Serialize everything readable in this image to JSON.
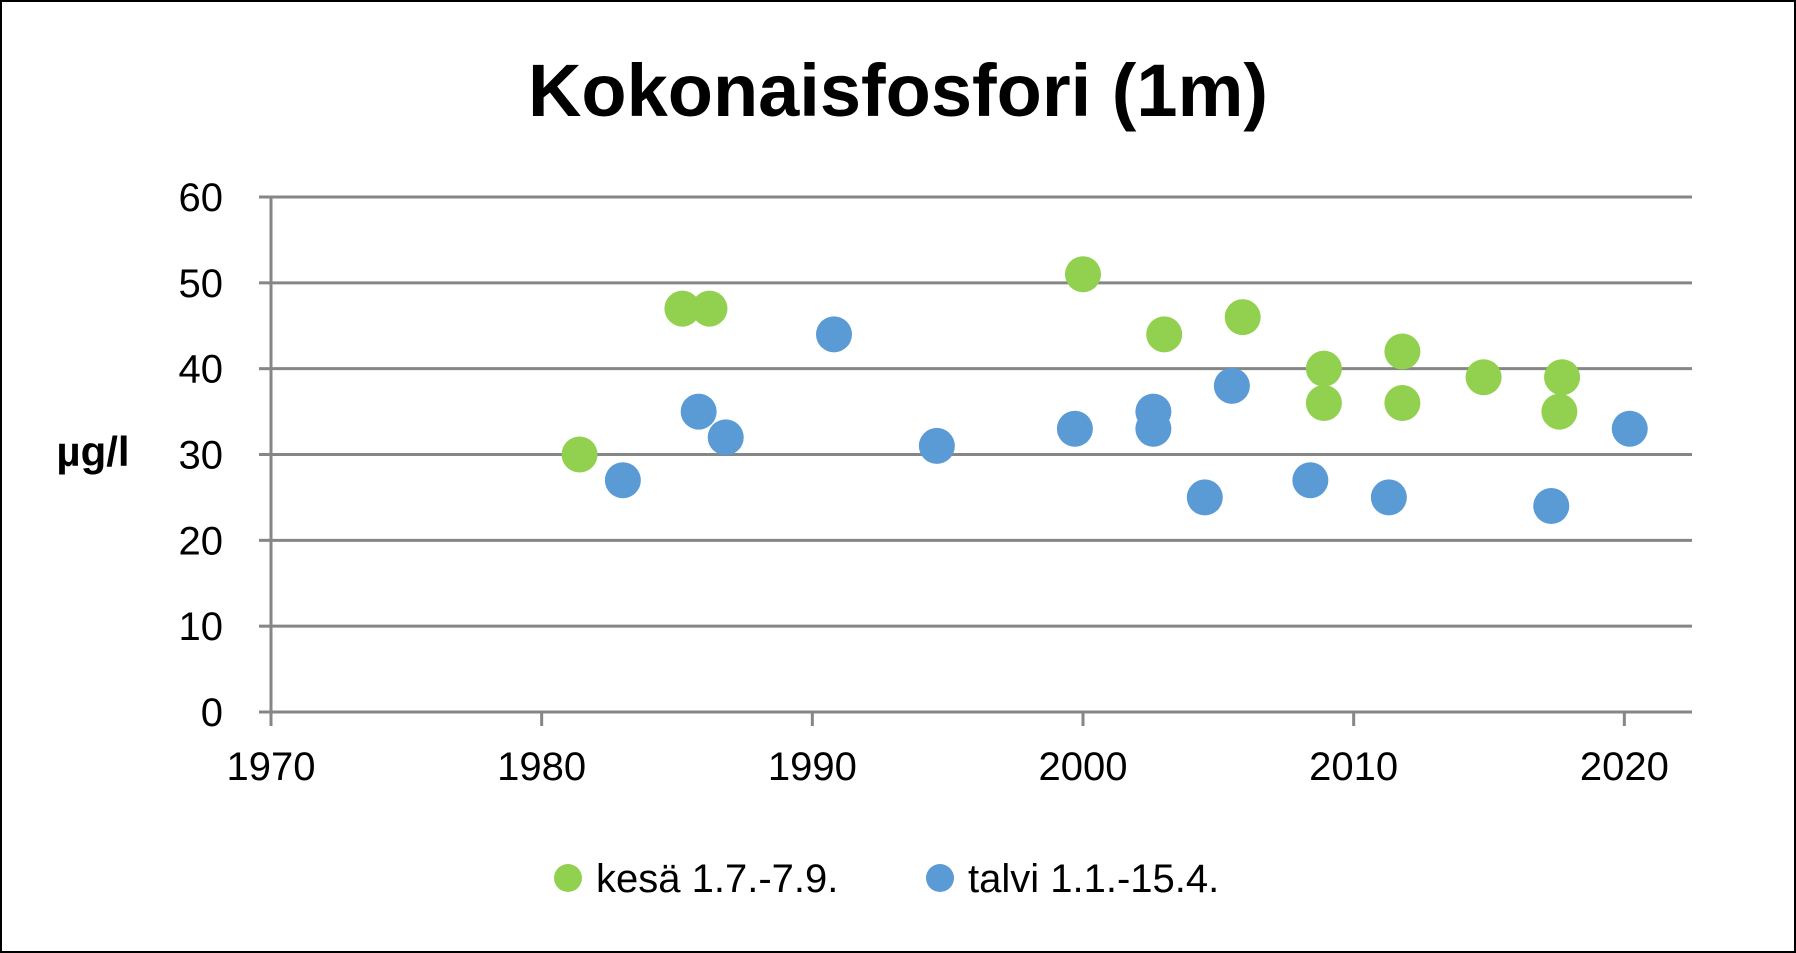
{
  "chart_data": {
    "type": "scatter",
    "title": "Kokonaisfosfori (1m)",
    "xlabel": "",
    "ylabel": "µg/l",
    "xlim": [
      1970,
      2022.5
    ],
    "ylim": [
      0,
      60
    ],
    "xticks": [
      1970,
      1980,
      1990,
      2000,
      2010,
      2020
    ],
    "yticks": [
      0,
      10,
      20,
      30,
      40,
      50,
      60
    ],
    "grid": "horizontal",
    "legend_position": "bottom",
    "series": [
      {
        "name": "kesä 1.7.-7.9.",
        "color": "#92d050",
        "points": [
          {
            "x": 1981.4,
            "y": 30
          },
          {
            "x": 1985.2,
            "y": 47
          },
          {
            "x": 1986.2,
            "y": 47
          },
          {
            "x": 2000.0,
            "y": 51
          },
          {
            "x": 2003.0,
            "y": 44
          },
          {
            "x": 2005.9,
            "y": 46
          },
          {
            "x": 2008.9,
            "y": 40
          },
          {
            "x": 2008.9,
            "y": 36
          },
          {
            "x": 2011.8,
            "y": 42
          },
          {
            "x": 2011.8,
            "y": 36
          },
          {
            "x": 2014.8,
            "y": 39
          },
          {
            "x": 2017.7,
            "y": 39
          },
          {
            "x": 2017.6,
            "y": 35
          }
        ]
      },
      {
        "name": "talvi 1.1.-15.4.",
        "color": "#5b9bd5",
        "points": [
          {
            "x": 1983.0,
            "y": 27
          },
          {
            "x": 1985.8,
            "y": 35
          },
          {
            "x": 1986.8,
            "y": 32
          },
          {
            "x": 1990.8,
            "y": 44
          },
          {
            "x": 1994.6,
            "y": 31
          },
          {
            "x": 1999.7,
            "y": 33
          },
          {
            "x": 2002.6,
            "y": 35
          },
          {
            "x": 2002.6,
            "y": 33
          },
          {
            "x": 2004.5,
            "y": 25
          },
          {
            "x": 2005.5,
            "y": 38
          },
          {
            "x": 2008.4,
            "y": 27
          },
          {
            "x": 2011.3,
            "y": 25
          },
          {
            "x": 2017.3,
            "y": 24
          },
          {
            "x": 2020.2,
            "y": 33
          }
        ]
      }
    ]
  }
}
